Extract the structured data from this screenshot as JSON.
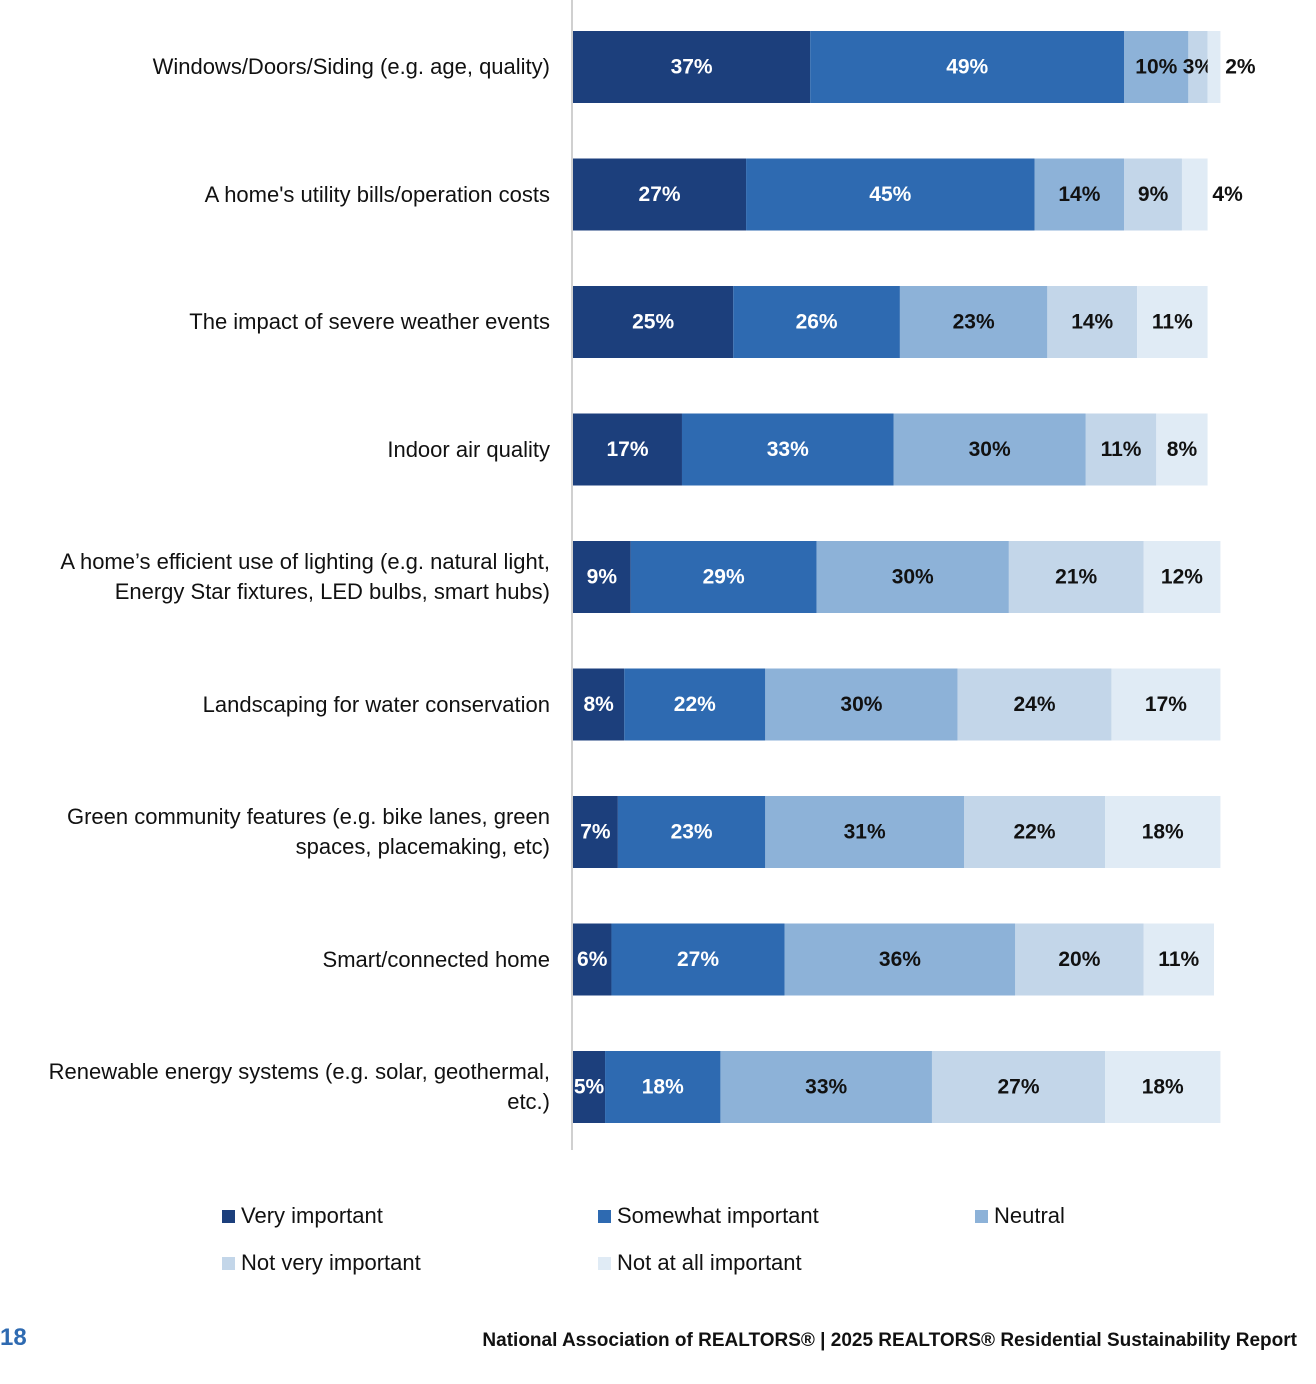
{
  "chart_data": {
    "type": "stacked_bar_horizontal",
    "categories": [
      "Windows/Doors/Siding (e.g. age, quality)",
      "A home's utility bills/operation costs",
      "The impact of severe weather events",
      "Indoor air quality",
      "A home’s efficient use of lighting (e.g. natural light, Energy Star fixtures, LED bulbs, smart hubs)",
      "Landscaping for water conservation",
      "Green community features (e.g. bike lanes, green spaces, placemaking, etc)",
      "Smart/connected home",
      "Renewable energy systems (e.g. solar, geothermal, etc.)"
    ],
    "series": [
      {
        "name": "Very important",
        "color": "#1c3f7c",
        "values": [
          37,
          27,
          25,
          17,
          9,
          8,
          7,
          6,
          5
        ],
        "value_labels": [
          "37%",
          "27%",
          "25%",
          "17%",
          "9%",
          "8%",
          "7%",
          "6%",
          "5%"
        ]
      },
      {
        "name": "Somewhat important",
        "color": "#2e6ab1",
        "values": [
          49,
          45,
          26,
          33,
          29,
          22,
          23,
          27,
          18
        ],
        "value_labels": [
          "49%",
          "45%",
          "26%",
          "33%",
          "29%",
          "22%",
          "23%",
          "27%",
          "18%"
        ]
      },
      {
        "name": "Neutral",
        "color": "#8db2d8",
        "values": [
          10,
          14,
          23,
          30,
          30,
          30,
          31,
          36,
          33
        ],
        "value_labels": [
          "10%",
          "14%",
          "23%",
          "30%",
          "30%",
          "30%",
          "31%",
          "36%",
          "33%"
        ]
      },
      {
        "name": "Not very important",
        "color": "#c3d6e9",
        "values": [
          3,
          9,
          14,
          11,
          21,
          24,
          22,
          20,
          27
        ],
        "value_labels": [
          "3%",
          "9%",
          "14%",
          "11%",
          "21%",
          "24%",
          "22%",
          "20%",
          "27%"
        ]
      },
      {
        "name": "Not at all important",
        "color": "#e0ebf5",
        "values": [
          2,
          4,
          11,
          8,
          12,
          17,
          18,
          11,
          18
        ],
        "value_labels": [
          "2%",
          "4%",
          "11%",
          "8%",
          "12%",
          "17%",
          "18%",
          "11%",
          "18%"
        ]
      }
    ]
  },
  "footer": {
    "page_number": "18",
    "text": "National Association of REALTORS® | 2025 REALTORS® Residential Sustainability Report"
  }
}
